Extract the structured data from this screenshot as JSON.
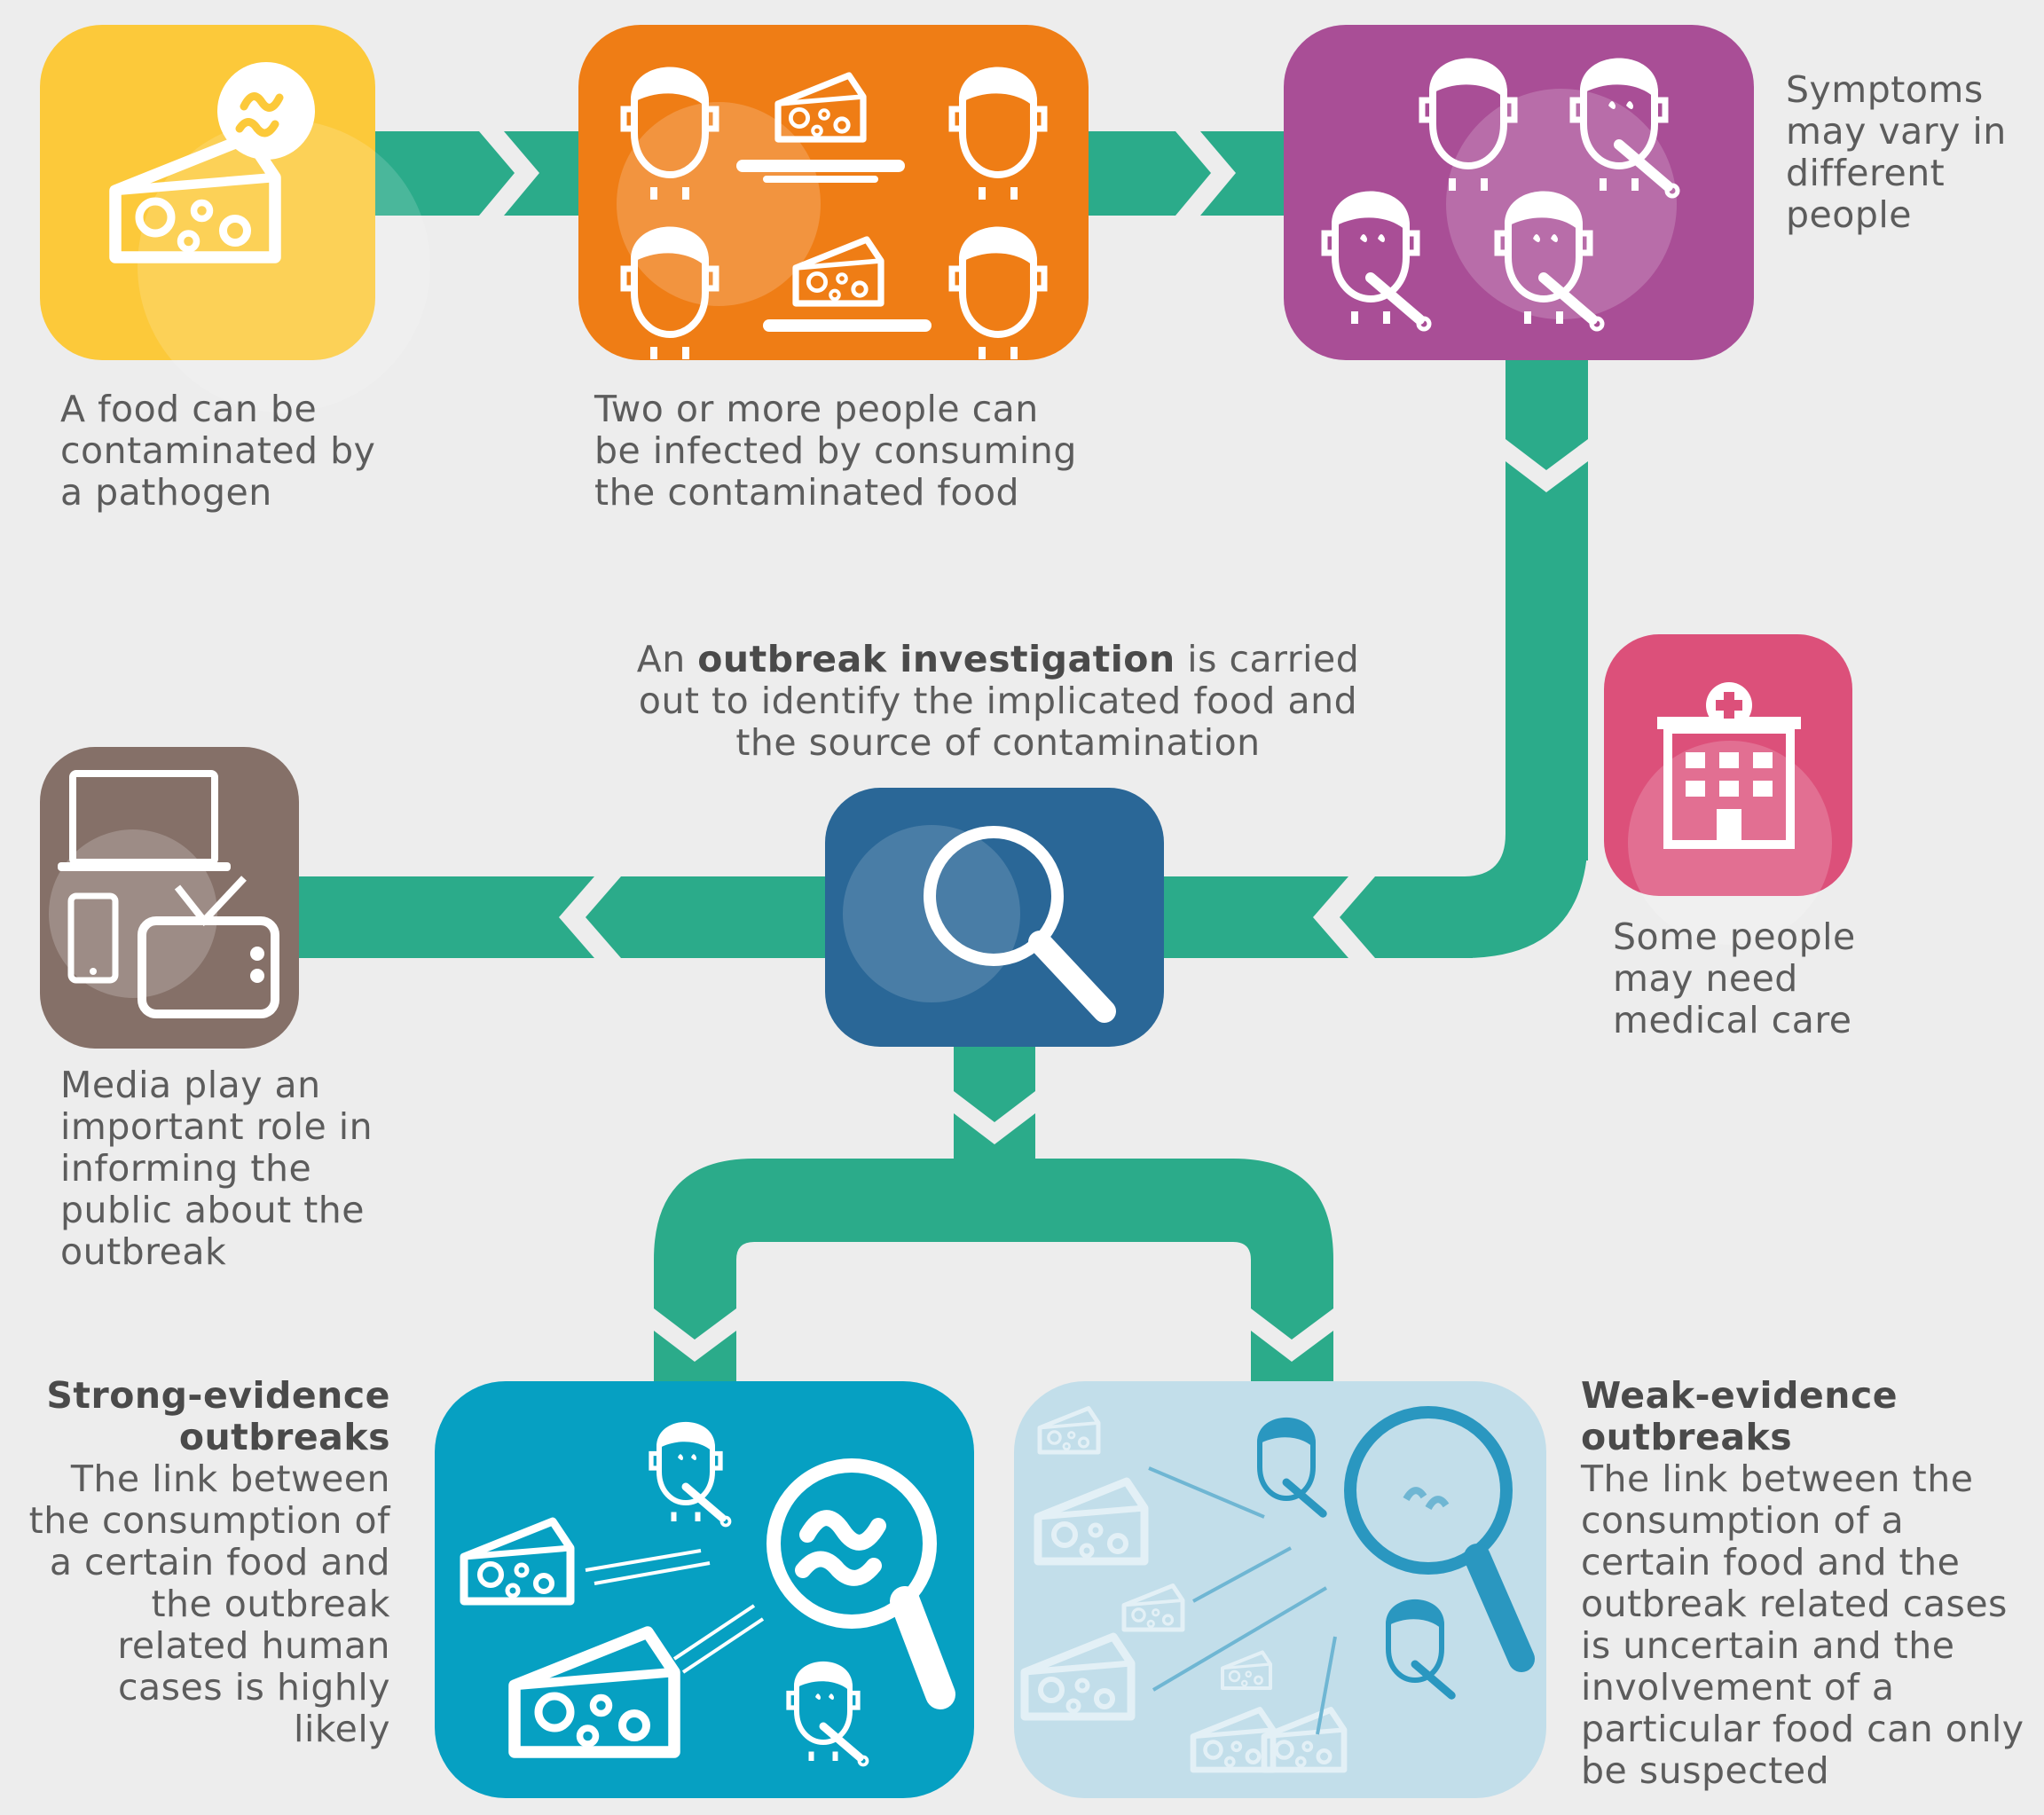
{
  "steps": {
    "contamination": {
      "text": "A food can be contaminated by a pathogen",
      "color": "#fcc93a"
    },
    "infection": {
      "text": "Two or more people can be infected by consuming the contaminated food",
      "color": "#ef7d15"
    },
    "symptoms": {
      "text": "Symptoms may vary in different people",
      "color": "#a94e96"
    },
    "medical": {
      "text": "Some people may need medical care",
      "color": "#dc507a"
    },
    "investigation": {
      "pre": "An ",
      "bold": "outbreak investigation",
      "post": " is carried out to identify the implicated food and the source of contamination",
      "color": "#2a6797"
    },
    "media": {
      "text": "Media play an important role in informing the public about the outbreak",
      "color": "#857068"
    },
    "strong": {
      "title": "Strong-evidence outbreaks",
      "text": "The link between the consumption of a certain food and the outbreak related human cases is highly likely",
      "color": "#06a0c2"
    },
    "weak": {
      "title": "Weak-evidence outbreaks",
      "text": "The link between the consumption of a certain food and the outbreak related cases is uncertain and the involvement of a particular food can only be suspected",
      "color": "#c2deea"
    }
  },
  "connector_color": "#2bab8a"
}
